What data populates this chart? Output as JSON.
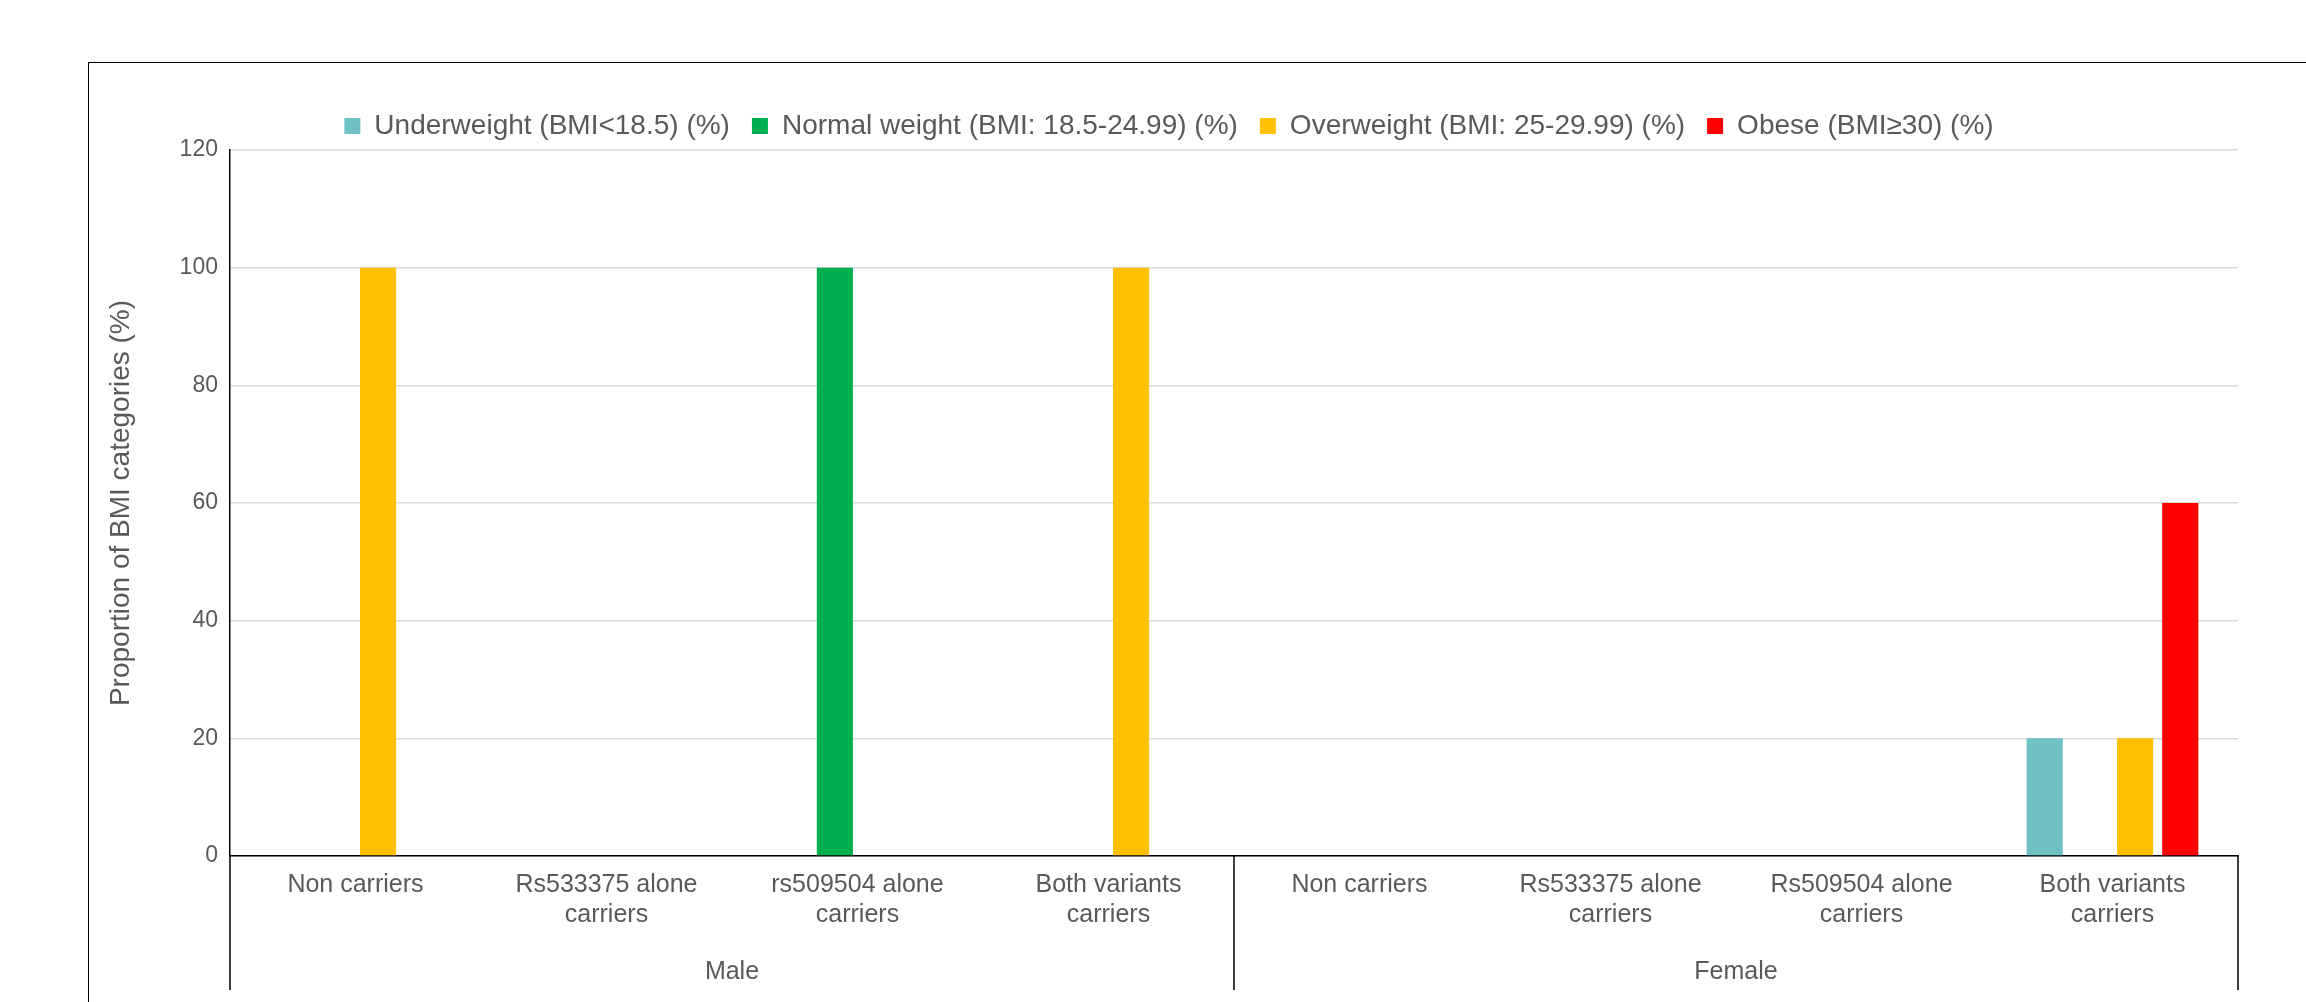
{
  "chart_data": {
    "type": "bar",
    "ylabel": "Proportion of BMI categories (%)",
    "categories": [
      "Non carriers",
      "Rs533375 alone carriers",
      "rs509504 alone carriers",
      "Both variants carriers",
      "Non carriers",
      "Rs533375 alone carriers",
      "Rs509504 alone carriers",
      "Both variants carriers"
    ],
    "annotations": [
      "Male",
      "Female"
    ],
    "series": [
      {
        "name": "Underweight (BMI<18.5) (%)",
        "color": "#70c1c4",
        "values": [
          0,
          0,
          0,
          0,
          0,
          0,
          0,
          20
        ]
      },
      {
        "name": "Normal weight (BMI: 18.5-24.99) (%)",
        "color": "#00b050",
        "values": [
          0,
          0,
          100,
          0,
          0,
          0,
          0,
          0
        ]
      },
      {
        "name": "Overweight (BMI: 25-29.99) (%)",
        "color": "#ffc000",
        "values": [
          100,
          0,
          0,
          100,
          0,
          0,
          0,
          20
        ]
      },
      {
        "name": "Obese (BMI≥30) (%)",
        "color": "#ff0000",
        "values": [
          0,
          0,
          0,
          0,
          0,
          0,
          0,
          60
        ]
      }
    ],
    "ylim": [
      0,
      120
    ],
    "yticks": [
      0,
      20,
      40,
      60,
      80,
      100,
      120
    ],
    "grid": "y",
    "legend": "top"
  }
}
